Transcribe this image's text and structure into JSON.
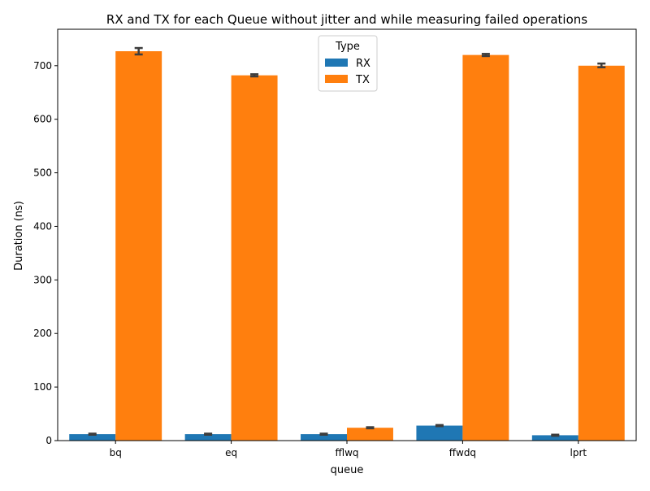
{
  "chart_data": {
    "type": "bar",
    "title": "RX and TX for each Queue without jitter and while measuring failed operations",
    "xlabel": "queue",
    "ylabel": "Duration (ns)",
    "categories": [
      "bq",
      "eq",
      "fflwq",
      "ffwdq",
      "lprt"
    ],
    "ylim": [
      0,
      768
    ],
    "yticks": [
      0,
      100,
      200,
      300,
      400,
      500,
      600,
      700
    ],
    "grid": false,
    "legend": {
      "title": "Type",
      "placement": "top-center"
    },
    "series": [
      {
        "name": "RX",
        "color": "#1f77b4",
        "values": [
          12,
          12,
          12,
          28,
          10
        ],
        "err_low": [
          11,
          11,
          11,
          27,
          9
        ],
        "err_high": [
          13,
          13,
          13,
          29,
          11
        ]
      },
      {
        "name": "TX",
        "color": "#ff7f0e",
        "values": [
          727,
          682,
          24,
          720,
          700
        ],
        "err_low": [
          721,
          680,
          23,
          718,
          697
        ],
        "err_high": [
          733,
          684,
          25,
          722,
          704
        ]
      }
    ]
  }
}
